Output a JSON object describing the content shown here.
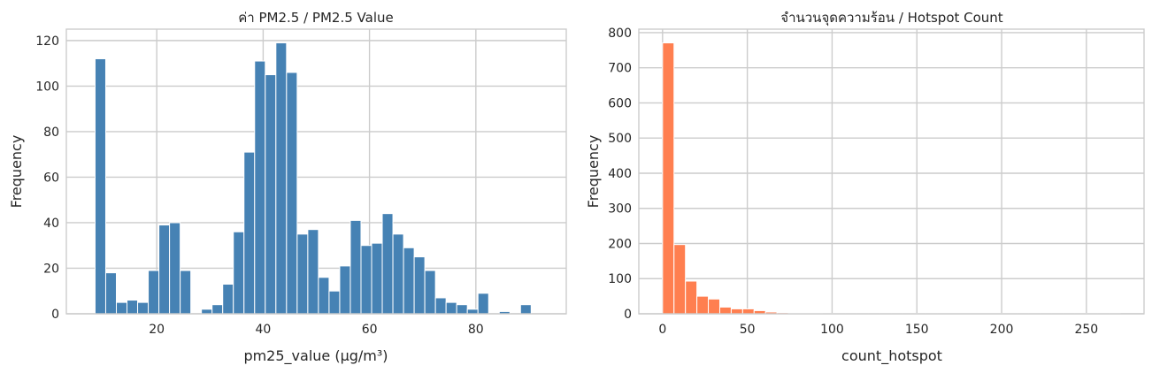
{
  "chart_data": [
    {
      "type": "bar",
      "subtype": "histogram",
      "title": "ค่า PM2.5 / PM2.5 Value",
      "xlabel": "pm25_value (μg/m³)",
      "ylabel": "Frequency",
      "xlim": [
        3,
        97
      ],
      "ylim": [
        0,
        125
      ],
      "x_ticks": [
        20,
        40,
        60,
        80
      ],
      "x_tick_labels": [
        "20",
        "40",
        "60",
        "80"
      ],
      "y_ticks": [
        0,
        20,
        40,
        60,
        80,
        100,
        120
      ],
      "y_tick_labels": [
        "0",
        "20",
        "40",
        "60",
        "80",
        "100",
        "120"
      ],
      "grid": true,
      "color": "#4682b4",
      "bin_start": 8.4,
      "bin_width": 2.0,
      "counts": [
        112,
        18,
        5,
        6,
        5,
        19,
        39,
        40,
        19,
        0,
        2,
        4,
        13,
        36,
        71,
        111,
        105,
        119,
        106,
        35,
        37,
        16,
        10,
        21,
        41,
        30,
        31,
        44,
        35,
        29,
        25,
        19,
        7,
        5,
        4,
        2,
        9,
        0,
        1,
        0,
        4
      ]
    },
    {
      "type": "bar",
      "subtype": "histogram",
      "title": "จำนวนจุดความร้อน / Hotspot Count",
      "xlabel": "count_hotspot",
      "ylabel": "Frequency",
      "xlim": [
        -14,
        284
      ],
      "ylim": [
        0,
        810
      ],
      "x_ticks": [
        0,
        50,
        100,
        150,
        200,
        250
      ],
      "x_tick_labels": [
        "0",
        "50",
        "100",
        "150",
        "200",
        "250"
      ],
      "y_ticks": [
        0,
        100,
        200,
        300,
        400,
        500,
        600,
        700,
        800
      ],
      "y_tick_labels": [
        "0",
        "100",
        "200",
        "300",
        "400",
        "500",
        "600",
        "700",
        "800"
      ],
      "grid": true,
      "color": "#ff7f50",
      "bin_start": 0,
      "bin_width": 6.75,
      "counts": [
        771,
        197,
        93,
        50,
        42,
        19,
        14,
        14,
        9,
        5,
        3,
        2,
        2,
        2,
        1,
        1,
        1,
        1,
        1,
        1,
        1,
        1,
        1,
        1,
        1,
        1,
        1,
        1,
        1,
        1,
        1,
        1,
        1,
        1,
        1,
        1,
        1,
        1,
        1,
        1
      ]
    }
  ]
}
